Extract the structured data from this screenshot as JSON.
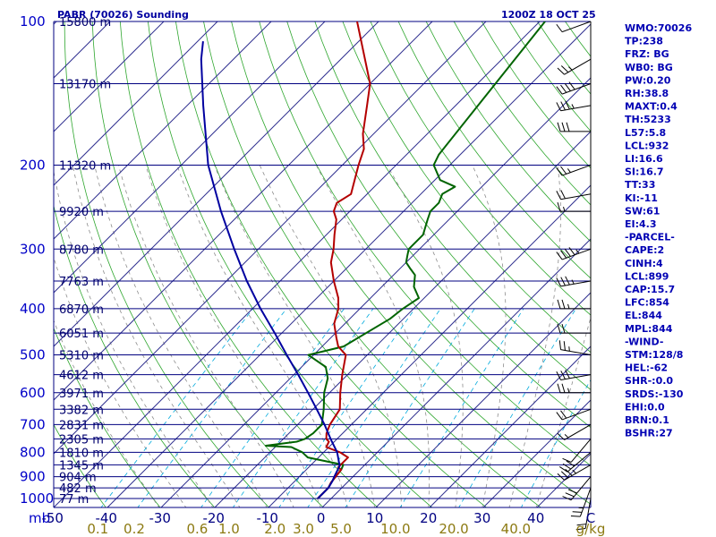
{
  "header": {
    "title": "PABR (70026) Sounding",
    "time": "1200Z 18 OCT 25"
  },
  "chart_data": {
    "type": "line",
    "chart_kind": "Skew-T log-P sounding",
    "grid": true,
    "pressure_levels": [
      {
        "p": 100,
        "label": "100",
        "height": "15800 m"
      },
      {
        "p": 135,
        "label": "",
        "height": "13170 m"
      },
      {
        "p": 200,
        "label": "200",
        "height": "11320 m"
      },
      {
        "p": 250,
        "label": "",
        "height": "9920 m"
      },
      {
        "p": 300,
        "label": "300",
        "height": "8780 m"
      },
      {
        "p": 350,
        "label": "",
        "height": "7763 m"
      },
      {
        "p": 400,
        "label": "400",
        "height": "6870 m"
      },
      {
        "p": 450,
        "label": "",
        "height": "6051 m"
      },
      {
        "p": 500,
        "label": "500",
        "height": "5310 m"
      },
      {
        "p": 550,
        "label": "",
        "height": "4612 m"
      },
      {
        "p": 600,
        "label": "600",
        "height": "3971 m"
      },
      {
        "p": 650,
        "label": "",
        "height": "3382 m"
      },
      {
        "p": 700,
        "label": "700",
        "height": "2831 m"
      },
      {
        "p": 750,
        "label": "",
        "height": "2305 m"
      },
      {
        "p": 800,
        "label": "800",
        "height": "1810 m"
      },
      {
        "p": 850,
        "label": "",
        "height": "1345 m"
      },
      {
        "p": 900,
        "label": "900",
        "height": "904 m"
      },
      {
        "p": 950,
        "label": "",
        "height": "482 m"
      },
      {
        "p": 1000,
        "label": "1000",
        "height": "77 m"
      }
    ],
    "ylabel": "mb",
    "xlabel": "g/kg",
    "temperature_ticks": [
      "-50",
      "-40",
      "-30",
      "-20",
      "-10",
      "0",
      "10",
      "20",
      "30",
      "40",
      "C"
    ],
    "temperature_tick_values": [
      -50,
      -40,
      -30,
      -20,
      -10,
      0,
      10,
      20,
      30,
      40
    ],
    "mixing_ratio_ticks": [
      "0.1",
      "0.2",
      "0.6",
      "1.0",
      "2.0",
      "3.0",
      "5.0",
      "10.0",
      "20.0",
      "40.0"
    ],
    "mixing_ratio_values": [
      0.1,
      0.2,
      0.6,
      1.0,
      2.0,
      3.0,
      5.0,
      10.0,
      20.0,
      40.0
    ],
    "isotherm_range": [
      -160,
      40
    ],
    "xlim": [
      -50,
      50
    ],
    "ylim": [
      1050,
      100
    ],
    "series": [
      {
        "role": "temperature",
        "color": "#006400",
        "points": [
          [
            1000,
            -2.5
          ],
          [
            950,
            -2.5
          ],
          [
            925,
            -3
          ],
          [
            870,
            -3.5
          ],
          [
            850,
            -4
          ],
          [
            820,
            -12
          ],
          [
            800,
            -14
          ],
          [
            780,
            -17
          ],
          [
            775,
            -22
          ],
          [
            760,
            -17
          ],
          [
            750,
            -16
          ],
          [
            730,
            -15.5
          ],
          [
            700,
            -15.5
          ],
          [
            650,
            -18
          ],
          [
            600,
            -21
          ],
          [
            560,
            -23
          ],
          [
            530,
            -25.5
          ],
          [
            500,
            -31
          ],
          [
            480,
            -26
          ],
          [
            420,
            -22.5
          ],
          [
            400,
            -22
          ],
          [
            380,
            -21
          ],
          [
            360,
            -24
          ],
          [
            340,
            -26
          ],
          [
            330,
            -28
          ],
          [
            320,
            -30
          ],
          [
            310,
            -31
          ],
          [
            300,
            -32
          ],
          [
            280,
            -32
          ],
          [
            260,
            -34
          ],
          [
            250,
            -35
          ],
          [
            240,
            -35
          ],
          [
            230,
            -36
          ],
          [
            222,
            -35
          ],
          [
            215,
            -39
          ],
          [
            200,
            -43
          ],
          [
            190,
            -44
          ],
          [
            100,
            -49
          ]
        ]
      },
      {
        "role": "dewpoint",
        "color": "#b40000",
        "points": [
          [
            1000,
            -2.5
          ],
          [
            950,
            -2.5
          ],
          [
            925,
            -3
          ],
          [
            870,
            -3.5
          ],
          [
            860,
            -4.5
          ],
          [
            820,
            -4.5
          ],
          [
            800,
            -7
          ],
          [
            780,
            -10.5
          ],
          [
            760,
            -11
          ],
          [
            750,
            -12
          ],
          [
            730,
            -13
          ],
          [
            700,
            -14
          ],
          [
            650,
            -15
          ],
          [
            600,
            -18
          ],
          [
            550,
            -21
          ],
          [
            500,
            -24
          ],
          [
            480,
            -27
          ],
          [
            460,
            -29
          ],
          [
            430,
            -32
          ],
          [
            400,
            -34
          ],
          [
            380,
            -36
          ],
          [
            350,
            -40
          ],
          [
            320,
            -44
          ],
          [
            300,
            -46
          ],
          [
            280,
            -48.5
          ],
          [
            260,
            -51
          ],
          [
            250,
            -53
          ],
          [
            240,
            -54
          ],
          [
            230,
            -53
          ],
          [
            200,
            -57
          ],
          [
            185,
            -59
          ],
          [
            172,
            -62
          ],
          [
            150,
            -66.5
          ],
          [
            135,
            -70
          ],
          [
            100,
            -84
          ]
        ]
      },
      {
        "role": "parcel",
        "color": "#0000a0",
        "points": [
          [
            1000,
            -2.5
          ],
          [
            950,
            -2.5
          ],
          [
            920,
            -3
          ],
          [
            899,
            -3.5
          ],
          [
            854,
            -4.5
          ],
          [
            800,
            -7.5
          ],
          [
            750,
            -11.2
          ],
          [
            700,
            -15
          ],
          [
            650,
            -19.3
          ],
          [
            600,
            -24
          ],
          [
            550,
            -29.2
          ],
          [
            500,
            -35
          ],
          [
            450,
            -41.3
          ],
          [
            400,
            -48.5
          ],
          [
            350,
            -56.2
          ],
          [
            300,
            -64.5
          ],
          [
            250,
            -74
          ],
          [
            200,
            -85
          ],
          [
            150,
            -97
          ],
          [
            120,
            -106
          ],
          [
            110,
            -109
          ]
        ]
      }
    ]
  },
  "indices": [
    "WMO:70026",
    "TP:238",
    "FRZ: BG",
    "WB0: BG",
    "PW:0.20",
    "RH:38.8",
    "MAXT:0.4",
    "TH:5233",
    "L57:5.8",
    "LCL:932",
    "LI:16.6",
    "SI:16.7",
    "TT:33",
    "KI:-11",
    "SW:61",
    "EI:4.3",
    "-PARCEL-",
    "CAPE:2",
    "CINH:4",
    "LCL:899",
    "CAP:15.7",
    "LFC:854",
    "EL:844",
    "MPL:844",
    "-WIND-",
    "STM:128/8",
    "HEL:-62",
    "SHR-:0.0",
    "SRDS:-130",
    "EHI:0.0",
    "BRN:0.1",
    "BSHR:27"
  ],
  "wind_barbs": [
    {
      "p": 100,
      "dir": 250,
      "spd": 10
    },
    {
      "p": 120,
      "dir": 240,
      "spd": 25
    },
    {
      "p": 135,
      "dir": 250,
      "spd": 40
    },
    {
      "p": 150,
      "dir": 260,
      "spd": 35
    },
    {
      "p": 170,
      "dir": 270,
      "spd": 30
    },
    {
      "p": 200,
      "dir": 250,
      "spd": 25
    },
    {
      "p": 230,
      "dir": 260,
      "spd": 20
    },
    {
      "p": 250,
      "dir": 270,
      "spd": 15
    },
    {
      "p": 300,
      "dir": 250,
      "spd": 45
    },
    {
      "p": 350,
      "dir": 260,
      "spd": 35
    },
    {
      "p": 400,
      "dir": 270,
      "spd": 25
    },
    {
      "p": 450,
      "dir": 270,
      "spd": 20
    },
    {
      "p": 500,
      "dir": 280,
      "spd": 25
    },
    {
      "p": 550,
      "dir": 260,
      "spd": 30
    },
    {
      "p": 600,
      "dir": 270,
      "spd": 25
    },
    {
      "p": 650,
      "dir": 250,
      "spd": 20
    },
    {
      "p": 700,
      "dir": 240,
      "spd": 15
    },
    {
      "p": 750,
      "dir": 220,
      "spd": 10
    },
    {
      "p": 800,
      "dir": 230,
      "spd": 30
    },
    {
      "p": 850,
      "dir": 240,
      "spd": 35
    },
    {
      "p": 900,
      "dir": 220,
      "spd": 30
    },
    {
      "p": 950,
      "dir": 200,
      "spd": 25
    },
    {
      "p": 1000,
      "dir": 190,
      "spd": 20
    }
  ]
}
